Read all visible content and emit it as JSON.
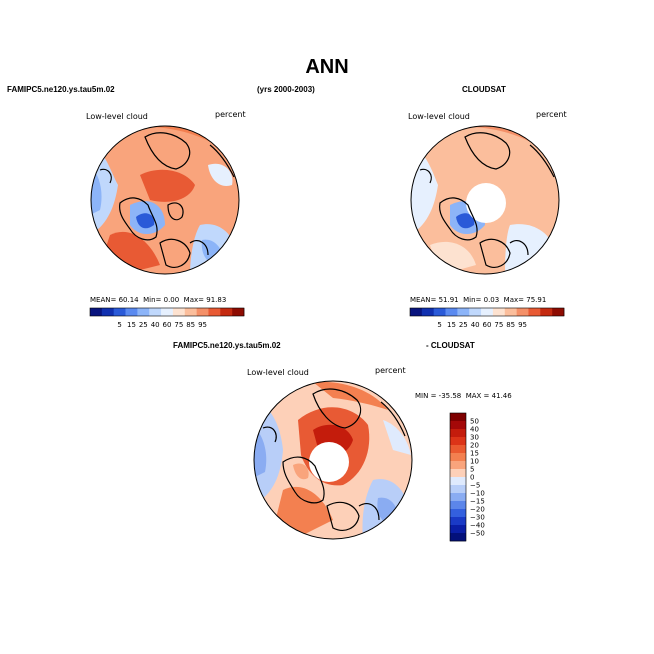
{
  "figure": {
    "title": "ANN",
    "model_label": "FAMIPC5.ne120.ys.tau5m.02",
    "period_label": "(yrs 2000-2003)",
    "obs_label": "CLOUDSAT",
    "diff_model_label": "FAMIPC5.ne120.ys.tau5m.02",
    "diff_obs_label": "- CLOUDSAT"
  },
  "panels": {
    "model": {
      "variable": "Low-level cloud",
      "units": "percent",
      "mean_label": "MEAN=",
      "mean": "60.14",
      "min_label": "Min=",
      "min": "0.00",
      "max_label": "Max=",
      "max": "91.83"
    },
    "obs": {
      "variable": "Low-level cloud",
      "units": "percent",
      "mean_label": "MEAN=",
      "mean": "51.91",
      "min_label": "Min=",
      "min": "0.03",
      "max_label": "Max=",
      "max": "75.91"
    },
    "diff": {
      "variable": "Low-level cloud",
      "units": "percent",
      "min_label": "MIN =",
      "min": "-35.58",
      "max_label": "MAX =",
      "max": "41.46"
    }
  },
  "chart_data": [
    {
      "type": "heatmap",
      "projection": "north-polar-stereographic",
      "title": "Low-level cloud",
      "units": "percent",
      "stats": {
        "mean": 60.14,
        "min": 0.0,
        "max": 91.83
      },
      "colorbar": {
        "orientation": "horizontal",
        "levels": [
          5,
          15,
          25,
          40,
          60,
          75,
          85,
          95
        ],
        "labels": [
          "5",
          "15",
          "25",
          "40",
          "60",
          "75",
          "85",
          "95"
        ],
        "colors": [
          "#08147e",
          "#1030b0",
          "#2a5ad8",
          "#5a8af0",
          "#8cb4f8",
          "#c0d8fc",
          "#e6f0fe",
          "#fde2d0",
          "#fbbe9c",
          "#f49068",
          "#e85a34",
          "#c42a10",
          "#8e0c02"
        ]
      }
    },
    {
      "type": "heatmap",
      "projection": "north-polar-stereographic",
      "title": "Low-level cloud",
      "units": "percent",
      "stats": {
        "mean": 51.91,
        "min": 0.03,
        "max": 75.91
      },
      "colorbar": {
        "orientation": "horizontal",
        "levels": [
          5,
          15,
          25,
          40,
          60,
          75,
          85,
          95
        ],
        "labels": [
          "5",
          "15",
          "25",
          "40",
          "60",
          "75",
          "85",
          "95"
        ],
        "colors": [
          "#08147e",
          "#1030b0",
          "#2a5ad8",
          "#5a8af0",
          "#8cb4f8",
          "#c0d8fc",
          "#e6f0fe",
          "#fde2d0",
          "#fbbe9c",
          "#f49068",
          "#e85a34",
          "#c42a10",
          "#8e0c02"
        ]
      }
    },
    {
      "type": "heatmap",
      "projection": "north-polar-stereographic",
      "title": "Low-level cloud",
      "units": "percent",
      "stats": {
        "min": -35.58,
        "max": 41.46
      },
      "colorbar": {
        "orientation": "vertical",
        "levels": [
          50,
          40,
          30,
          20,
          15,
          10,
          5,
          0,
          -5,
          -10,
          -15,
          -20,
          -30,
          -40,
          -50
        ],
        "labels": [
          "50",
          "40",
          "30",
          "20",
          "15",
          "10",
          "5",
          "0",
          "−5",
          "−10",
          "−15",
          "−20",
          "−30",
          "−40",
          "−50"
        ],
        "colors": [
          "#7e0000",
          "#a40808",
          "#c41c0c",
          "#dc3418",
          "#ea5a30",
          "#f38050",
          "#f9a47c",
          "#fdd0b8",
          "#dfeafd",
          "#b8cef8",
          "#8aacf2",
          "#5c86ea",
          "#3460de",
          "#1a3ac6",
          "#0a1ea6",
          "#03107a"
        ]
      }
    }
  ]
}
